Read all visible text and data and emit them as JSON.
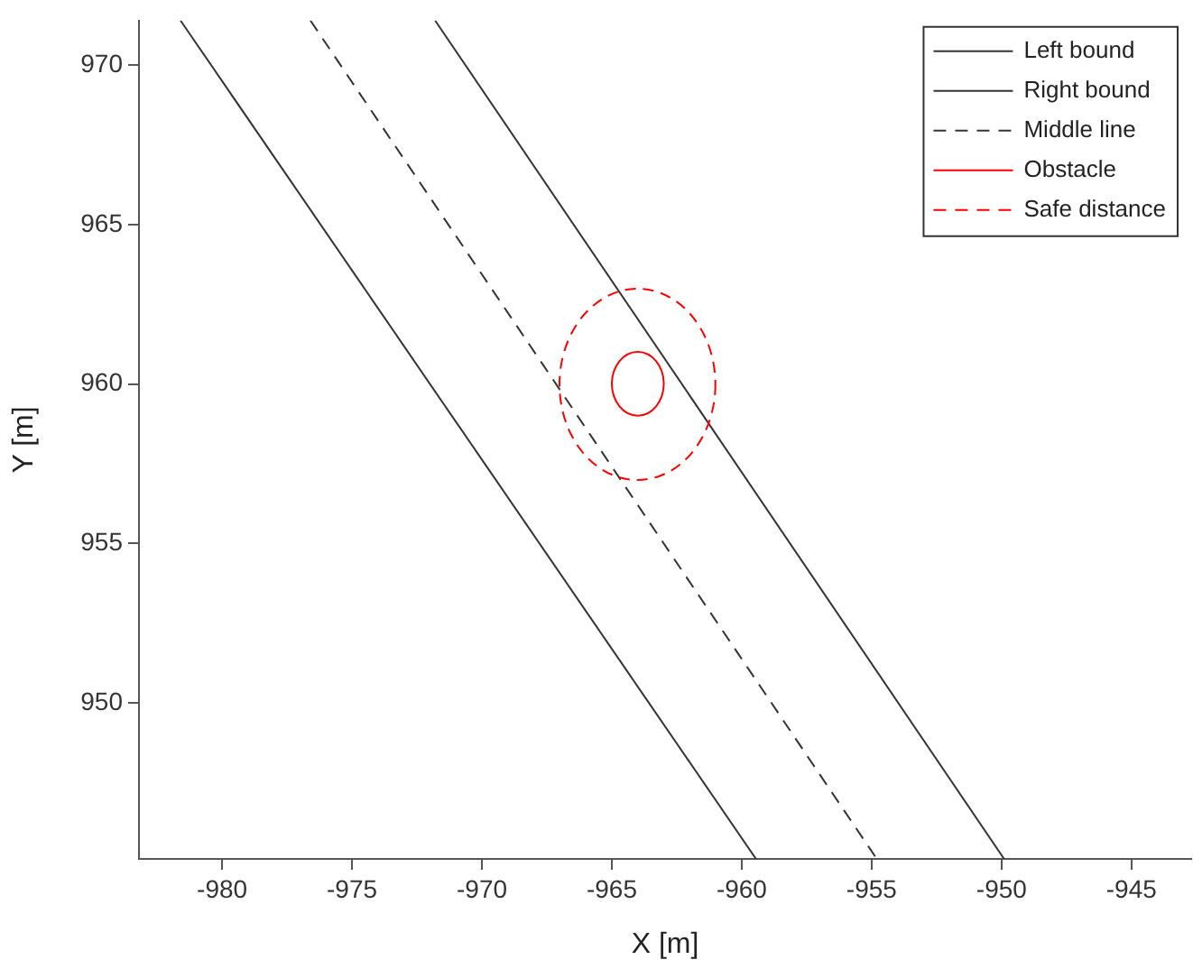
{
  "chart_data": {
    "type": "line",
    "xlabel": "X [m]",
    "ylabel": "Y [m]",
    "xlim": [
      -983.2,
      -942.7
    ],
    "ylim": [
      945.1,
      971.4
    ],
    "xticks": [
      -980,
      -975,
      -970,
      -965,
      -960,
      -955,
      -950,
      -945
    ],
    "yticks": [
      950,
      955,
      960,
      965,
      970
    ],
    "grid": false,
    "legend": "top right",
    "marker": "none",
    "series": [
      {
        "name": "Left bound",
        "color": "#333333",
        "line_style": "solid",
        "x": [
          -981.6,
          -959.45
        ],
        "values": [
          971.4,
          945.1
        ]
      },
      {
        "name": "Right bound",
        "color": "#333333",
        "line_style": "solid",
        "x": [
          -971.8,
          -949.9
        ],
        "values": [
          971.4,
          945.1
        ]
      },
      {
        "name": "Middle line",
        "color": "#333333",
        "line_style": "dashed",
        "x": [
          -976.6,
          -954.8
        ],
        "values": [
          971.4,
          945.1
        ]
      }
    ],
    "annotations": [
      "Obstacle",
      "Safe distance"
    ]
  }
}
